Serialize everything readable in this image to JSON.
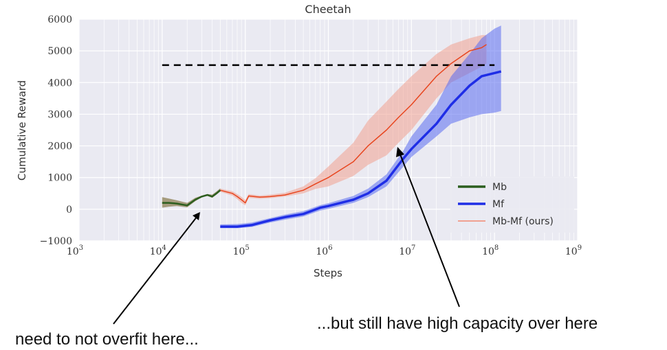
{
  "chart_data": {
    "type": "line",
    "title": "Cheetah",
    "xlabel": "Steps",
    "ylabel": "Cumulative Reward",
    "xscale": "log",
    "xlim": [
      1000,
      1000000000
    ],
    "ylim": [
      -1000,
      6000
    ],
    "xtick_labels": [
      "10^3",
      "10^4",
      "10^5",
      "10^6",
      "10^7",
      "10^8",
      "10^9"
    ],
    "xtick_values": [
      1000,
      10000,
      100000,
      1000000,
      10000000,
      100000000,
      1000000000
    ],
    "ytick_labels": [
      "−1000",
      "0",
      "1000",
      "2000",
      "3000",
      "4000",
      "5000",
      "6000"
    ],
    "ytick_values": [
      -1000,
      0,
      1000,
      2000,
      3000,
      4000,
      5000,
      6000
    ],
    "grid": true,
    "legend_position": "lower-right",
    "reference_line": {
      "y": 4550,
      "x_range": [
        10000,
        100000000
      ],
      "style": "dashed",
      "color": "#000000"
    },
    "series": [
      {
        "name": "Mb",
        "color": "#2b5e1e",
        "band_color": "#6b5a1e",
        "x": [
          10000,
          12000,
          15000,
          20000,
          25000,
          30000,
          35000,
          40000,
          45000,
          50000
        ],
        "y": [
          200,
          200,
          180,
          120,
          300,
          400,
          450,
          400,
          500,
          600
        ],
        "y_low": [
          50,
          80,
          100,
          60,
          250,
          380,
          420,
          360,
          460,
          560
        ],
        "y_high": [
          380,
          340,
          280,
          200,
          360,
          430,
          480,
          460,
          560,
          660
        ]
      },
      {
        "name": "Mf",
        "color": "#1f2ee6",
        "band_color": "#5a6cf0",
        "x": [
          50000,
          80000,
          120000,
          200000,
          300000,
          500000,
          800000,
          1000000,
          2000000,
          3000000,
          5000000,
          8000000,
          10000000,
          20000000,
          30000000,
          50000000,
          70000000,
          100000000,
          120000000
        ],
        "y": [
          -550,
          -550,
          -500,
          -350,
          -250,
          -150,
          50,
          100,
          300,
          500,
          900,
          1600,
          1900,
          2700,
          3300,
          3900,
          4200,
          4300,
          4350
        ],
        "y_low": [
          -600,
          -600,
          -560,
          -420,
          -330,
          -230,
          -40,
          10,
          200,
          380,
          720,
          1350,
          1650,
          2300,
          2700,
          2900,
          3000,
          3050,
          3100
        ],
        "y_high": [
          -480,
          -470,
          -420,
          -280,
          -170,
          -60,
          130,
          190,
          420,
          650,
          1100,
          1850,
          2300,
          3300,
          4200,
          4900,
          5400,
          5700,
          5800
        ]
      },
      {
        "name": "Mb-Mf (ours)",
        "color": "#e8451e",
        "band_color": "#f0a090",
        "x": [
          50000,
          70000,
          80000,
          90000,
          100000,
          110000,
          150000,
          200000,
          300000,
          500000,
          700000,
          1000000,
          2000000,
          3000000,
          5000000,
          7000000,
          10000000,
          20000000,
          30000000,
          50000000,
          70000000,
          80000000
        ],
        "y": [
          600,
          500,
          400,
          300,
          200,
          420,
          380,
          400,
          450,
          600,
          800,
          1000,
          1500,
          2000,
          2500,
          2900,
          3300,
          4200,
          4600,
          5000,
          5100,
          5200
        ],
        "y_low": [
          550,
          430,
          320,
          200,
          120,
          360,
          330,
          350,
          400,
          500,
          640,
          720,
          1050,
          1400,
          1700,
          2100,
          2500,
          3500,
          4000,
          4300,
          4500,
          4600
        ],
        "y_high": [
          650,
          570,
          480,
          390,
          290,
          480,
          430,
          460,
          520,
          720,
          980,
          1350,
          2100,
          2800,
          3400,
          3800,
          4200,
          4900,
          5200,
          5400,
          5500,
          5500
        ]
      }
    ]
  },
  "annotations": {
    "left": "need to not overfit here...",
    "right": "...but still have high capacity over here"
  },
  "colors": {
    "plot_background": "#eaeaf2",
    "grid": "#ffffff",
    "arrow": "#000000"
  }
}
